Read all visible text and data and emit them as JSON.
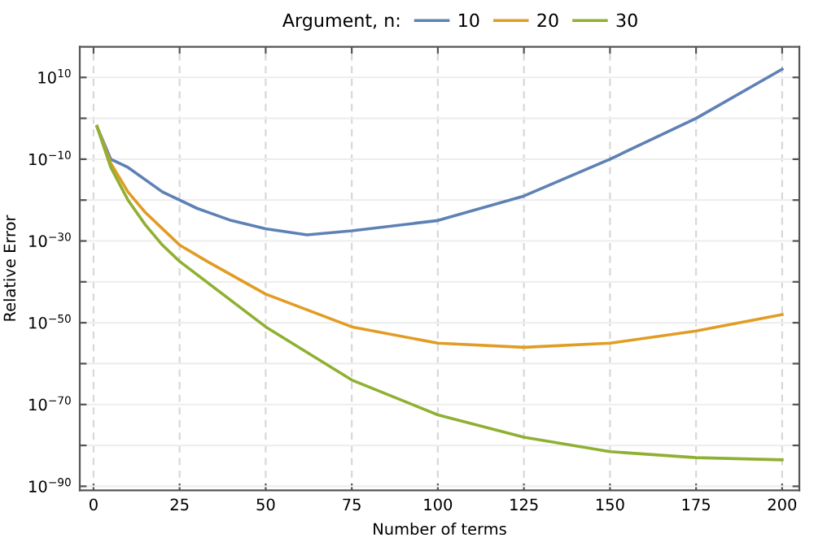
{
  "chart_data": {
    "type": "line",
    "xlabel": "Number of terms",
    "ylabel": "Relative Error",
    "legend_title": "Argument, n:",
    "legend": "top",
    "grid": true,
    "log": "y",
    "line_style": "solid",
    "marker": "none",
    "xlim": [
      -4,
      205
    ],
    "xticks": [
      0,
      25,
      50,
      75,
      100,
      125,
      150,
      175,
      200
    ],
    "ylim": [
      1e-91,
      3e+17
    ],
    "yticks": [
      {
        "value": 10000000000.0,
        "label": "10$^{10}$"
      },
      {
        "value": 1,
        "label": null
      },
      {
        "value": 1e-10,
        "label": "10$^{−10}$"
      },
      {
        "value": 1e-20,
        "label": null
      },
      {
        "value": 1e-30,
        "label": "10$^{−30}$"
      },
      {
        "value": 1e-40,
        "label": null
      },
      {
        "value": 1e-50,
        "label": "10$^{−50}$"
      },
      {
        "value": 1e-60,
        "label": null
      },
      {
        "value": 1e-70,
        "label": "10$^{−70}$"
      },
      {
        "value": 1e-80,
        "label": null
      },
      {
        "value": 1e-90,
        "label": "10$^{−90}$"
      }
    ],
    "series": [
      {
        "name": "10",
        "color": "#5e81b5",
        "x": [
          1,
          5,
          10,
          20,
          30,
          40,
          50,
          62,
          75,
          100,
          125,
          150,
          175,
          200
        ],
        "values": [
          0.01,
          1e-10,
          1e-12,
          1e-18,
          1e-22,
          1e-25,
          1e-27,
          3e-29,
          3e-28,
          1e-25,
          1e-19,
          1e-10,
          1,
          1000000000000.0
        ]
      },
      {
        "name": "20",
        "color": "#e19c24",
        "x": [
          1,
          5,
          10,
          15,
          20,
          25,
          33,
          50,
          75,
          100,
          125,
          150,
          175,
          200
        ],
        "values": [
          0.01,
          1e-11,
          1e-18,
          1e-23,
          1e-27,
          1e-31,
          1e-35,
          1e-43,
          1e-51,
          1e-55,
          1e-56,
          1e-55,
          1e-52,
          1e-48
        ]
      },
      {
        "name": "30",
        "color": "#8fb032",
        "x": [
          1,
          5,
          10,
          15,
          20,
          25,
          50,
          75,
          100,
          125,
          150,
          175,
          200
        ],
        "values": [
          0.01,
          1e-12,
          1e-20,
          1e-26,
          1e-31,
          1e-35,
          1e-51,
          1e-64,
          3e-73,
          1e-78,
          3e-82,
          1e-83,
          3e-84
        ]
      }
    ]
  }
}
